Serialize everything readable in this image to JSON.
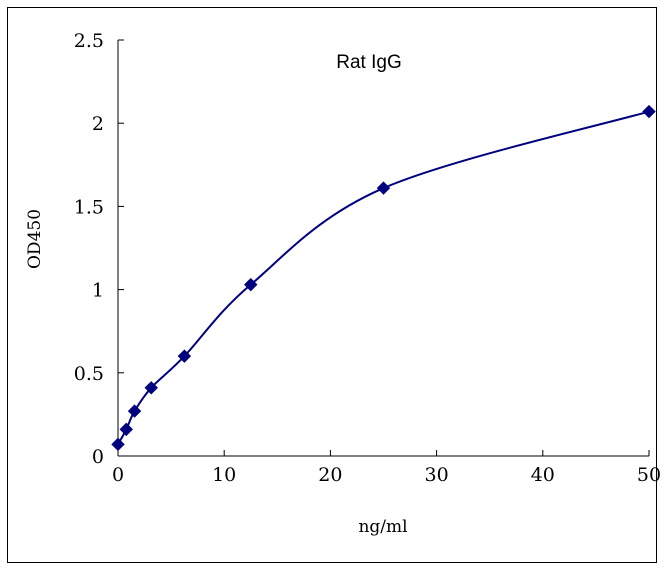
{
  "chart_data": {
    "type": "scatter",
    "title": "Rat IgG",
    "xlabel": "ng/ml",
    "ylabel": "OD450",
    "xlim": [
      0,
      50
    ],
    "ylim": [
      0,
      2.5
    ],
    "xticks": [
      "0",
      "10",
      "20",
      "30",
      "40",
      "50"
    ],
    "yticks": [
      "0",
      "0.5",
      "1",
      "1.5",
      "2",
      "2.5"
    ],
    "grid": false,
    "legend": "none",
    "series": [
      {
        "x": [
          0,
          0.78,
          1.56,
          3.13,
          6.25,
          12.5,
          25,
          50
        ],
        "y": [
          0.07,
          0.16,
          0.27,
          0.41,
          0.6,
          1.03,
          1.61,
          2.07
        ],
        "marker": "diamond",
        "line": "smooth",
        "color": "#00007f"
      }
    ]
  }
}
